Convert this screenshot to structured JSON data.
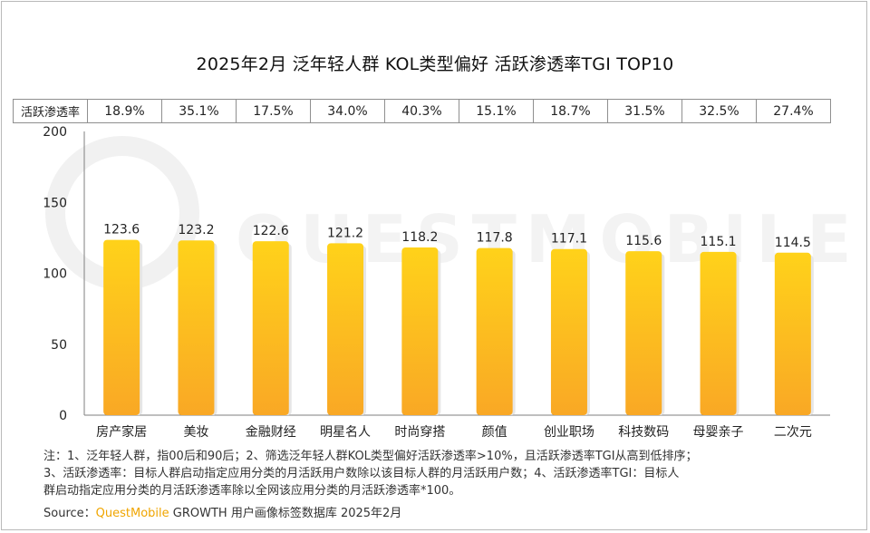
{
  "title": "2025年2月 泛年轻人群 KOL类型偏好 活跃渗透率TGI TOP10",
  "table": {
    "row_label": "活跃渗透率",
    "values": [
      "18.9%",
      "35.1%",
      "17.5%",
      "34.0%",
      "40.3%",
      "15.1%",
      "18.7%",
      "31.5%",
      "32.5%",
      "27.4%"
    ]
  },
  "chart_data": {
    "type": "bar",
    "categories": [
      "房产家居",
      "美妆",
      "金融财经",
      "明星名人",
      "时尚穿搭",
      "颜值",
      "创业职场",
      "科技数码",
      "母婴亲子",
      "二次元"
    ],
    "values": [
      123.6,
      123.2,
      122.6,
      121.2,
      118.2,
      117.8,
      117.1,
      115.6,
      115.1,
      114.5
    ],
    "ylim": [
      0,
      200
    ],
    "yticks": [
      0,
      50,
      100,
      150,
      200
    ],
    "grid": false
  },
  "colors": {
    "bar_top": "#FFD21A",
    "bar_bottom": "#F9A825",
    "axis": "#7f7f7f",
    "brand": "#F0A500"
  },
  "notes": [
    "注：1、泛年轻人群，指00后和90后；2、筛选泛年轻人群KOL类型偏好活跃渗透率>10%，且活跃渗透率TGI从高到低排序；",
    "3、活跃渗透率：目标人群启动指定应用分类的月活跃用户数除以该目标人群的月活跃用户数；4、活跃渗透率TGI：目标人",
    "群启动指定应用分类的月活跃渗透率除以全网该应用分类的月活跃渗透率*100。"
  ],
  "source": {
    "label": "Source：",
    "brand": "QuestMobile",
    "rest": " GROWTH 用户画像标签数据库 2025年2月"
  },
  "watermark": "QUESTMOBILE"
}
